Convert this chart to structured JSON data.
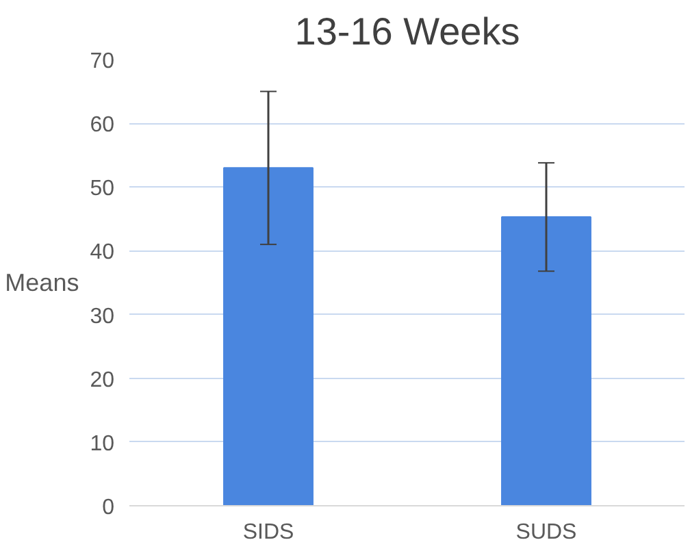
{
  "chart_data": {
    "type": "bar",
    "title": "13-16 Weeks",
    "ylabel": "Means",
    "categories": [
      "SIDS",
      "SUDS"
    ],
    "color": "#4a86df",
    "values": [
      53,
      45.3
    ],
    "errors": [
      12,
      8.5
    ],
    "ylim": [
      0,
      70
    ],
    "yticks": [
      0,
      10,
      20,
      30,
      40,
      50,
      60,
      70
    ],
    "grid": "y"
  }
}
